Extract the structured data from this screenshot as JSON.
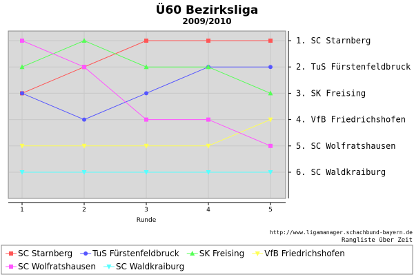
{
  "chart_data": {
    "type": "line",
    "title": "Ü60 Bezirksliga",
    "subtitle": "2009/2010",
    "xlabel": "Runde",
    "x": [
      1,
      2,
      3,
      4,
      5
    ],
    "ylim": [
      1,
      6
    ],
    "y_inverted": true,
    "grid": true,
    "rank_labels": [
      "1. SC Starnberg",
      "2. TuS Fürstenfeldbruck",
      "3. SK Freising",
      "4. VfB Friedrichshofen",
      "5. SC Wolfratshausen",
      "6. SC Waldkraiburg"
    ],
    "series": [
      {
        "name": "SC Starnberg",
        "values": [
          3,
          2,
          1,
          1,
          1
        ],
        "color": "#ff5555",
        "marker": "square"
      },
      {
        "name": "TuS Fürstenfeldbruck",
        "values": [
          3,
          4,
          3,
          2,
          2
        ],
        "color": "#5555ff",
        "marker": "circle"
      },
      {
        "name": "SK Freising",
        "values": [
          2,
          1,
          2,
          2,
          3
        ],
        "color": "#55ff55",
        "marker": "triangle-up"
      },
      {
        "name": "VfB Friedrichshofen",
        "values": [
          5,
          5,
          5,
          5,
          4
        ],
        "color": "#ffff55",
        "marker": "triangle-down"
      },
      {
        "name": "SC Wolfratshausen",
        "values": [
          1,
          2,
          4,
          4,
          5
        ],
        "color": "#ff55ff",
        "marker": "square"
      },
      {
        "name": "SC Waldkraiburg",
        "values": [
          6,
          6,
          6,
          6,
          6
        ],
        "color": "#55ffff",
        "marker": "triangle-down"
      }
    ],
    "legend_position": "bottom",
    "source_text": "http://www.ligamanager.schachbund-bayern.de",
    "ranking_caption": "Rangliste über Zeit"
  }
}
